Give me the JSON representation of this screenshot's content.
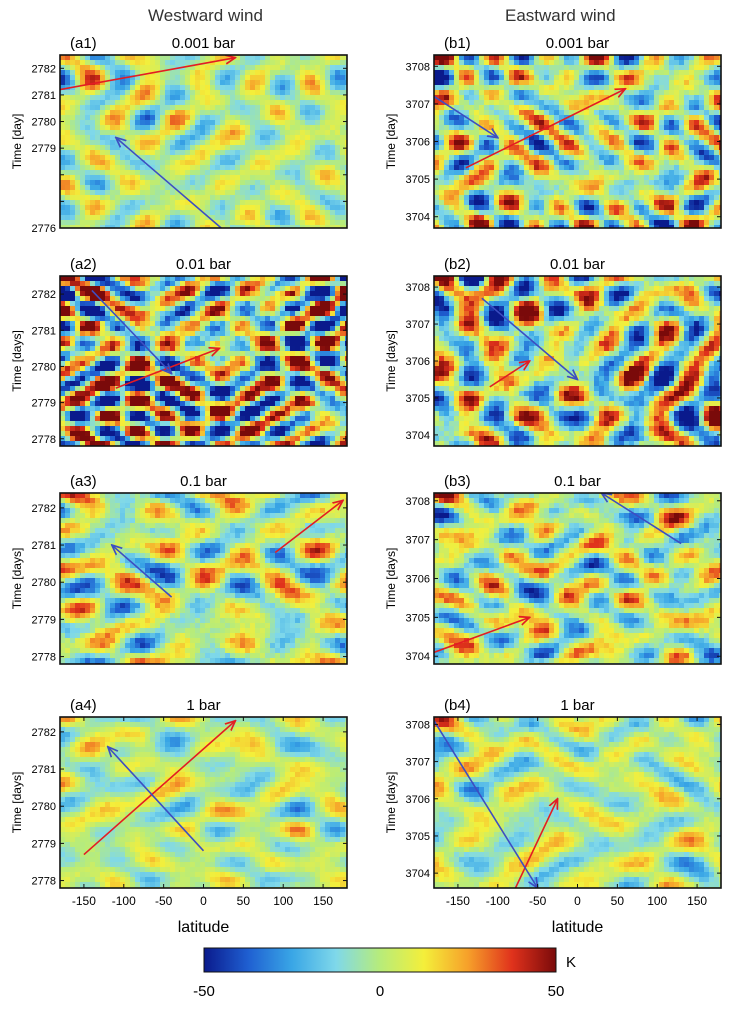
{
  "figure": {
    "column_titles": [
      "Westward wind",
      "Eastward wind"
    ]
  },
  "chart_data": [
    {
      "type": "heatmap",
      "panel": "(a1)",
      "title": "0.001 bar",
      "ylabel": "Time [day]",
      "xlabel": "",
      "x_ticks": [],
      "y_ticks": [
        2776,
        2777,
        2778,
        2779,
        2780,
        2781,
        2782
      ],
      "y_tick_labels": [
        "2776",
        "",
        "",
        "2779",
        "2780",
        "2781",
        "2782"
      ],
      "xlim": [
        -180,
        180
      ],
      "ylim": [
        2776,
        2782.5
      ],
      "amplitude": 0.55,
      "seed": 11,
      "lines": [
        {
          "color": "red",
          "from": [
            -180,
            2781.2
          ],
          "to": [
            40,
            2782.4
          ]
        },
        {
          "color": "blue",
          "from": [
            30,
            2775.8
          ],
          "to": [
            -110,
            2779.4
          ]
        }
      ]
    },
    {
      "type": "heatmap",
      "panel": "(b1)",
      "title": "0.001 bar",
      "ylabel": "Time [day]",
      "xlabel": "",
      "x_ticks": [],
      "y_ticks": [
        3704,
        3705,
        3706,
        3707,
        3708
      ],
      "y_tick_labels": [
        "3704",
        "3705",
        "3706",
        "3707",
        "3708"
      ],
      "xlim": [
        -180,
        180
      ],
      "ylim": [
        3703.7,
        3708.3
      ],
      "amplitude": 0.85,
      "seed": 23,
      "lines": [
        {
          "color": "red",
          "from": [
            -140,
            3705.3
          ],
          "to": [
            60,
            3707.4
          ]
        },
        {
          "color": "blue",
          "from": [
            -180,
            3707.2
          ],
          "to": [
            -100,
            3706.1
          ]
        }
      ]
    },
    {
      "type": "heatmap",
      "panel": "(a2)",
      "title": "0.01 bar",
      "ylabel": "Time [days]",
      "xlabel": "",
      "x_ticks": [],
      "y_ticks": [
        2778,
        2779,
        2780,
        2781,
        2782
      ],
      "y_tick_labels": [
        "2778",
        "2779",
        "2780",
        "2781",
        "2782"
      ],
      "xlim": [
        -180,
        180
      ],
      "ylim": [
        2777.8,
        2782.5
      ],
      "amplitude": 1.25,
      "seed": 37,
      "lines": [
        {
          "color": "red",
          "from": [
            -110,
            2779.4
          ],
          "to": [
            20,
            2780.5
          ]
        },
        {
          "color": "blue",
          "from": [
            -140,
            2782.1
          ],
          "to": [
            -40,
            2779.8
          ]
        }
      ]
    },
    {
      "type": "heatmap",
      "panel": "(b2)",
      "title": "0.01 bar",
      "ylabel": "Time [days]",
      "xlabel": "",
      "x_ticks": [],
      "y_ticks": [
        3704,
        3705,
        3706,
        3707,
        3708
      ],
      "y_tick_labels": [
        "3704",
        "3705",
        "3706",
        "3707",
        "3708"
      ],
      "xlim": [
        -180,
        180
      ],
      "ylim": [
        3703.7,
        3708.3
      ],
      "amplitude": 1.1,
      "seed": 41,
      "lines": [
        {
          "color": "red",
          "from": [
            -110,
            3705.3
          ],
          "to": [
            -60,
            3706.0
          ]
        },
        {
          "color": "blue",
          "from": [
            -120,
            3707.7
          ],
          "to": [
            0,
            3705.5
          ]
        }
      ]
    },
    {
      "type": "heatmap",
      "panel": "(a3)",
      "title": "0.1 bar",
      "ylabel": "Time [days]",
      "xlabel": "",
      "x_ticks": [],
      "y_ticks": [
        2778,
        2779,
        2780,
        2781,
        2782
      ],
      "y_tick_labels": [
        "2778",
        "2779",
        "2780",
        "2781",
        "2782"
      ],
      "xlim": [
        -180,
        180
      ],
      "ylim": [
        2777.8,
        2782.4
      ],
      "amplitude": 0.8,
      "seed": 53,
      "lines": [
        {
          "color": "red",
          "from": [
            90,
            2780.8
          ],
          "to": [
            175,
            2782.2
          ]
        },
        {
          "color": "blue",
          "from": [
            -40,
            2779.6
          ],
          "to": [
            -115,
            2781.0
          ]
        }
      ]
    },
    {
      "type": "heatmap",
      "panel": "(b3)",
      "title": "0.1 bar",
      "ylabel": "Time [days]",
      "xlabel": "",
      "x_ticks": [],
      "y_ticks": [
        3704,
        3705,
        3706,
        3707,
        3708
      ],
      "y_tick_labels": [
        "3704",
        "3705",
        "3706",
        "3707",
        "3708"
      ],
      "xlim": [
        -180,
        180
      ],
      "ylim": [
        3703.8,
        3708.2
      ],
      "amplitude": 0.8,
      "seed": 67,
      "lines": [
        {
          "color": "red",
          "from": [
            -180,
            3704.1
          ],
          "to": [
            -60,
            3705.0
          ]
        },
        {
          "color": "blue",
          "from": [
            130,
            3706.9
          ],
          "to": [
            30,
            3708.2
          ]
        }
      ]
    },
    {
      "type": "heatmap",
      "panel": "(a4)",
      "title": "1 bar",
      "ylabel": "Time [days]",
      "xlabel": "latitude",
      "x_ticks": [
        -150,
        -100,
        -50,
        0,
        50,
        100,
        150
      ],
      "y_ticks": [
        2778,
        2779,
        2780,
        2781,
        2782
      ],
      "y_tick_labels": [
        "2778",
        "2779",
        "2780",
        "2781",
        "2782"
      ],
      "xlim": [
        -180,
        180
      ],
      "ylim": [
        2777.8,
        2782.4
      ],
      "amplitude": 0.45,
      "seed": 79,
      "lines": [
        {
          "color": "red",
          "from": [
            -150,
            2778.7
          ],
          "to": [
            40,
            2782.3
          ]
        },
        {
          "color": "blue",
          "from": [
            0,
            2778.8
          ],
          "to": [
            -120,
            2781.6
          ]
        }
      ]
    },
    {
      "type": "heatmap",
      "panel": "(b4)",
      "title": "1 bar",
      "ylabel": "Time [days]",
      "xlabel": "latitude",
      "x_ticks": [
        -150,
        -100,
        -50,
        0,
        50,
        100,
        150
      ],
      "y_ticks": [
        3704,
        3705,
        3706,
        3707,
        3708
      ],
      "y_tick_labels": [
        "3704",
        "3705",
        "3706",
        "3707",
        "3708"
      ],
      "xlim": [
        -180,
        180
      ],
      "ylim": [
        3703.6,
        3708.2
      ],
      "amplitude": 0.55,
      "seed": 97,
      "lines": [
        {
          "color": "red",
          "from": [
            -80,
            3703.5
          ],
          "to": [
            -25,
            3706.0
          ]
        },
        {
          "color": "blue",
          "from": [
            -180,
            3708.1
          ],
          "to": [
            -50,
            3703.6
          ]
        }
      ]
    }
  ],
  "colorbar": {
    "min": -50,
    "max": 50,
    "tick_labels": [
      "-50",
      "0",
      "50"
    ],
    "unit": "K",
    "colors": [
      "#0a1a8c",
      "#1f5fd1",
      "#39a6e6",
      "#7fd8ea",
      "#b7ec7a",
      "#f4ef3a",
      "#f6a02a",
      "#e0321c",
      "#7a0a0a"
    ]
  },
  "line_colors": {
    "red": "#e31c23",
    "blue": "#3d4ec2"
  }
}
